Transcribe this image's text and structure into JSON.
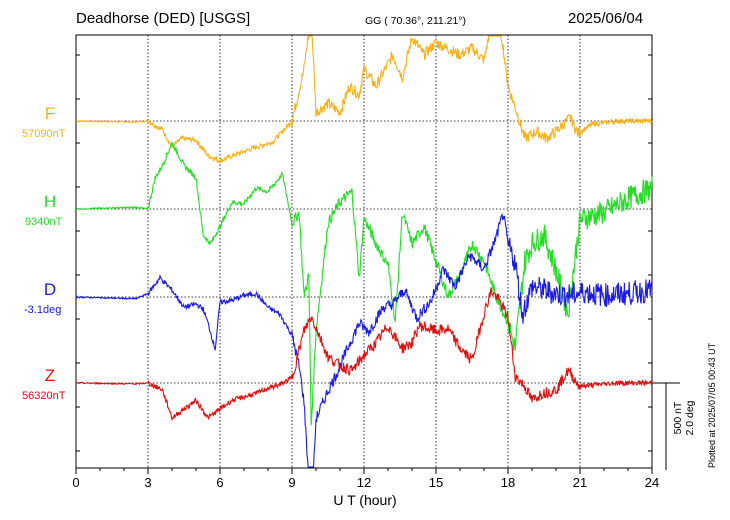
{
  "header": {
    "station": "Deadhorse (DED)  [USGS]",
    "coords": "GG ( 70.36°, 211.21°)",
    "date": "2025/06/04"
  },
  "side_note": "Plotted at 2025/07/05 00:43 UT",
  "scale": {
    "nT": "500 nT",
    "deg": "2.0 deg"
  },
  "chart_data": {
    "type": "line",
    "xlabel": "U T (hour)",
    "xlim": [
      0,
      24
    ],
    "xticks": [
      0,
      3,
      6,
      9,
      12,
      15,
      18,
      21,
      24
    ],
    "grid": true,
    "series_baselines_note": "baseline value printed under each component name",
    "series": [
      {
        "name": "F",
        "baseline_label": "57090nT",
        "color": "#f5b21c",
        "points": [
          [
            0,
            0
          ],
          [
            2.5,
            -5
          ],
          [
            3,
            0
          ],
          [
            3.6,
            -50
          ],
          [
            4,
            -150
          ],
          [
            4.4,
            -100
          ],
          [
            5,
            -110
          ],
          [
            5.5,
            -200
          ],
          [
            6,
            -230
          ],
          [
            6.5,
            -200
          ],
          [
            7.5,
            -150
          ],
          [
            8.2,
            -120
          ],
          [
            9,
            0
          ],
          [
            9.5,
            300
          ],
          [
            9.8,
            620
          ],
          [
            10,
            50
          ],
          [
            10.5,
            100
          ],
          [
            11,
            50
          ],
          [
            11.4,
            200
          ],
          [
            11.8,
            150
          ],
          [
            12,
            300
          ],
          [
            12.5,
            200
          ],
          [
            13.2,
            380
          ],
          [
            13.6,
            250
          ],
          [
            14,
            480
          ],
          [
            14.5,
            380
          ],
          [
            15,
            450
          ],
          [
            16,
            380
          ],
          [
            16.5,
            420
          ],
          [
            17,
            350
          ],
          [
            17.5,
            680
          ],
          [
            17.8,
            420
          ],
          [
            18,
            200
          ],
          [
            18.3,
            80
          ],
          [
            18.7,
            -100
          ],
          [
            19.2,
            -60
          ],
          [
            19.6,
            -100
          ],
          [
            20,
            -60
          ],
          [
            20.6,
            20
          ],
          [
            20.9,
            -70
          ],
          [
            21.5,
            -20
          ],
          [
            22.5,
            0
          ],
          [
            24,
            0
          ]
        ]
      },
      {
        "name": "H",
        "baseline_label": "9340nT",
        "color": "#22dd22",
        "points": [
          [
            0,
            0
          ],
          [
            2.5,
            10
          ],
          [
            3,
            0
          ],
          [
            3.3,
            180
          ],
          [
            3.6,
            250
          ],
          [
            4,
            380
          ],
          [
            4.5,
            250
          ],
          [
            5,
            180
          ],
          [
            5.3,
            -150
          ],
          [
            5.6,
            -200
          ],
          [
            6,
            -100
          ],
          [
            6.5,
            40
          ],
          [
            7,
            30
          ],
          [
            7.5,
            120
          ],
          [
            8,
            100
          ],
          [
            8.6,
            200
          ],
          [
            9,
            -80
          ],
          [
            9.3,
            -20
          ],
          [
            9.5,
            -500
          ],
          [
            9.7,
            -380
          ],
          [
            9.8,
            -1240
          ],
          [
            10,
            -700
          ],
          [
            10.5,
            -80
          ],
          [
            11,
            40
          ],
          [
            11.5,
            100
          ],
          [
            11.8,
            -400
          ],
          [
            12,
            -50
          ],
          [
            12.5,
            -200
          ],
          [
            13,
            -320
          ],
          [
            13.3,
            -650
          ],
          [
            13.6,
            -20
          ],
          [
            14,
            -200
          ],
          [
            14.5,
            -100
          ],
          [
            15,
            -300
          ],
          [
            15.5,
            -500
          ],
          [
            16,
            -380
          ],
          [
            16.5,
            -200
          ],
          [
            17,
            -300
          ],
          [
            17.5,
            -500
          ],
          [
            18,
            -650
          ],
          [
            18.3,
            -800
          ],
          [
            18.7,
            -300
          ],
          [
            19,
            -200
          ],
          [
            19.5,
            -150
          ],
          [
            20,
            -350
          ],
          [
            20.5,
            -600
          ],
          [
            21,
            -60
          ],
          [
            22,
            -20
          ],
          [
            23,
            60
          ],
          [
            24,
            120
          ]
        ]
      },
      {
        "name": "D",
        "baseline_label": "-3.1deg",
        "color": "#1a1ae6",
        "points": [
          [
            0,
            0
          ],
          [
            2.5,
            -10
          ],
          [
            3,
            20
          ],
          [
            3.5,
            110
          ],
          [
            4,
            40
          ],
          [
            4.5,
            -60
          ],
          [
            5,
            -40
          ],
          [
            5.3,
            -70
          ],
          [
            5.5,
            -150
          ],
          [
            5.8,
            -300
          ],
          [
            6,
            -30
          ],
          [
            6.5,
            -20
          ],
          [
            7,
            10
          ],
          [
            7.5,
            20
          ],
          [
            8,
            -60
          ],
          [
            8.5,
            -100
          ],
          [
            9,
            -220
          ],
          [
            9.3,
            -400
          ],
          [
            9.5,
            -600
          ],
          [
            9.8,
            -1280
          ],
          [
            10,
            -700
          ],
          [
            10.5,
            -540
          ],
          [
            11,
            -400
          ],
          [
            11.3,
            -300
          ],
          [
            11.8,
            -150
          ],
          [
            12.2,
            -200
          ],
          [
            12.8,
            -60
          ],
          [
            13.2,
            -40
          ],
          [
            13.7,
            40
          ],
          [
            14.2,
            -120
          ],
          [
            14.8,
            -20
          ],
          [
            15.3,
            160
          ],
          [
            15.8,
            60
          ],
          [
            16.4,
            240
          ],
          [
            17,
            160
          ],
          [
            17.5,
            340
          ],
          [
            17.8,
            480
          ],
          [
            18,
            300
          ],
          [
            18.3,
            200
          ],
          [
            18.6,
            -100
          ],
          [
            19,
            60
          ],
          [
            19.5,
            40
          ],
          [
            20,
            20
          ],
          [
            20.5,
            10
          ],
          [
            21.2,
            30
          ],
          [
            22,
            10
          ],
          [
            23,
            20
          ],
          [
            24,
            40
          ]
        ]
      },
      {
        "name": "Z",
        "baseline_label": "56320nT",
        "color": "#e01010",
        "points": [
          [
            0,
            0
          ],
          [
            2.5,
            -5
          ],
          [
            3,
            0
          ],
          [
            3.6,
            -40
          ],
          [
            4,
            -200
          ],
          [
            4.5,
            -150
          ],
          [
            5,
            -100
          ],
          [
            5.5,
            -200
          ],
          [
            6,
            -150
          ],
          [
            6.5,
            -100
          ],
          [
            7,
            -80
          ],
          [
            7.5,
            -60
          ],
          [
            8,
            -30
          ],
          [
            8.5,
            -10
          ],
          [
            9,
            30
          ],
          [
            9.5,
            300
          ],
          [
            9.8,
            380
          ],
          [
            10,
            320
          ],
          [
            10.5,
            150
          ],
          [
            11,
            100
          ],
          [
            11.5,
            70
          ],
          [
            12,
            160
          ],
          [
            12.5,
            230
          ],
          [
            13,
            330
          ],
          [
            13.3,
            260
          ],
          [
            13.6,
            200
          ],
          [
            14,
            230
          ],
          [
            14.3,
            330
          ],
          [
            15,
            300
          ],
          [
            15.5,
            310
          ],
          [
            16,
            200
          ],
          [
            16.5,
            130
          ],
          [
            17,
            400
          ],
          [
            17.3,
            530
          ],
          [
            17.6,
            480
          ],
          [
            18,
            380
          ],
          [
            18.3,
            40
          ],
          [
            18.7,
            -20
          ],
          [
            19,
            -100
          ],
          [
            19.4,
            -60
          ],
          [
            20,
            -40
          ],
          [
            20.5,
            70
          ],
          [
            21,
            -20
          ],
          [
            21.6,
            -10
          ],
          [
            22.5,
            0
          ],
          [
            24,
            0
          ]
        ]
      }
    ]
  }
}
